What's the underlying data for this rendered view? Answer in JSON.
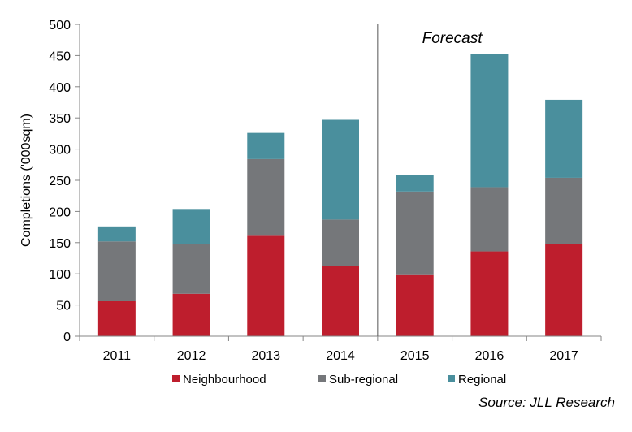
{
  "chart_data": {
    "type": "bar",
    "stacked": true,
    "categories": [
      "2011",
      "2012",
      "2013",
      "2014",
      "2015",
      "2016",
      "2017"
    ],
    "series": [
      {
        "name": "Neighbourhood",
        "color": "#be1e2d",
        "values": [
          56,
          68,
          161,
          113,
          98,
          136,
          148
        ]
      },
      {
        "name": "Sub-regional",
        "color": "#75777a",
        "values": [
          96,
          80,
          123,
          74,
          134,
          103,
          106
        ]
      },
      {
        "name": "Regional",
        "color": "#4a8f9d",
        "values": [
          24,
          56,
          42,
          160,
          27,
          214,
          125
        ]
      }
    ],
    "ylabel": "Completions ('000sqm)",
    "xlabel": "",
    "title": "",
    "ylim": [
      0,
      500
    ],
    "yticks": [
      0,
      50,
      100,
      150,
      200,
      250,
      300,
      350,
      400,
      450,
      500
    ],
    "grid": false,
    "legend_position": "bottom",
    "annotations": [
      {
        "text": "Forecast",
        "region_start": "2015"
      }
    ],
    "forecast_divider_after": "2014"
  },
  "source": "Source: JLL Research"
}
